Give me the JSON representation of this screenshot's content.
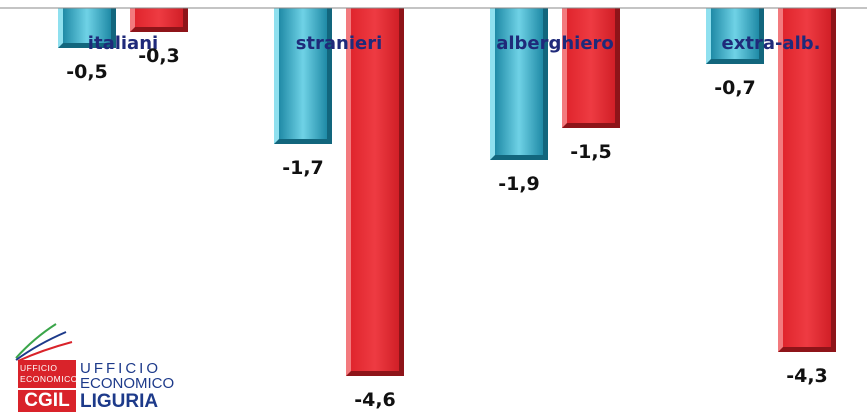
{
  "chart_data": {
    "type": "bar",
    "categories": [
      "italiani",
      "stranieri",
      "alberghiero",
      "extra-alb."
    ],
    "series": [
      {
        "values": [
          -0.5,
          -1.7,
          -1.9,
          -0.7
        ],
        "color": "#3ab4cf"
      },
      {
        "values": [
          -0.3,
          -4.6,
          -1.5,
          -4.3
        ],
        "color": "#e0252d"
      }
    ],
    "value_labels": [
      [
        "-0,5",
        "-1,7",
        "-1,9",
        "-0,7"
      ],
      [
        "-0,3",
        "-4,6",
        "-1,5",
        "-4,3"
      ]
    ],
    "title": "",
    "xlabel": "",
    "ylabel": "",
    "ylim": [
      -4.8,
      0
    ],
    "grid": false,
    "legend": "none",
    "label_color": "#1f2a7a"
  },
  "logo": {
    "ufficio_small": "UFFICIO",
    "economico_small": "ECONOMICO",
    "cgil": "CGIL",
    "ufficio": "UFFICIO",
    "economico": "ECONOMICO",
    "liguria": "LIGURIA",
    "colors": {
      "red": "#d9232a",
      "blue": "#1d3a8a",
      "green": "#3aa54a"
    }
  }
}
